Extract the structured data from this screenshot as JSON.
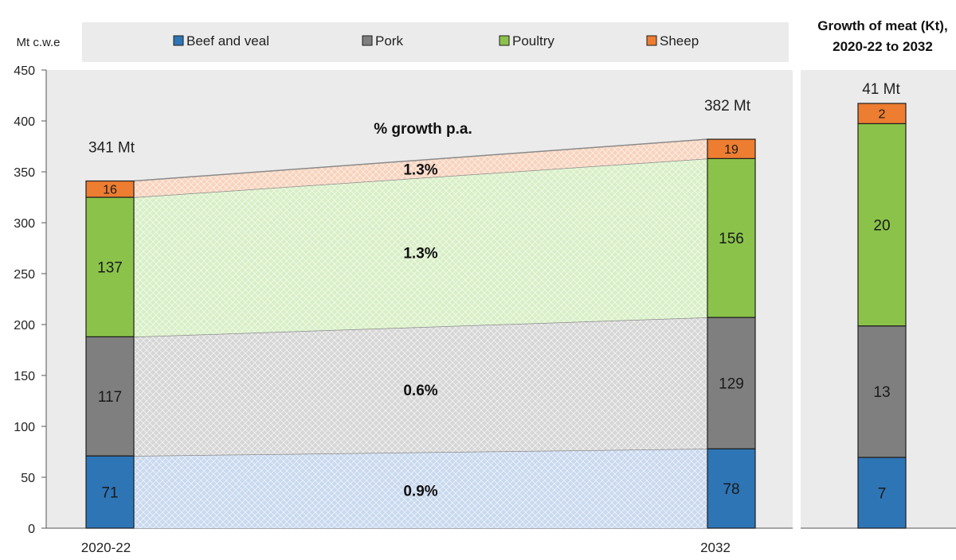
{
  "colors": {
    "beef": "#2e75b6",
    "pork": "#7f7f7f",
    "poultry": "#8bc34a",
    "sheep": "#ed7d31",
    "beef_band": "#c9d9ef",
    "pork_band": "#d6d6d6",
    "poultry_band": "#d8efc6",
    "sheep_band": "#f8d3bd",
    "panel_bg": "#ebebeb"
  },
  "chart_data": [
    {
      "type": "bar",
      "stacked": true,
      "ylabel": "Mt c.w.e",
      "ylim": [
        0,
        450
      ],
      "yticks": [
        0,
        50,
        100,
        150,
        200,
        250,
        300,
        350,
        400,
        450
      ],
      "categories": [
        "2020-22",
        "2032"
      ],
      "totals": [
        "341  Mt",
        "382  Mt"
      ],
      "annotation_title": "% growth p.a.",
      "legend": [
        "Beef and veal",
        "Pork",
        "Poultry",
        "Sheep"
      ],
      "legend_position": "top",
      "series": [
        {
          "name": "Beef and veal",
          "color_key": "beef",
          "values": [
            71,
            78
          ],
          "growth": "0.9%"
        },
        {
          "name": "Pork",
          "color_key": "pork",
          "values": [
            117,
            129
          ],
          "growth": "0.6%"
        },
        {
          "name": "Poultry",
          "color_key": "poultry",
          "values": [
            137,
            156
          ],
          "growth": "1.3%"
        },
        {
          "name": "Sheep",
          "color_key": "sheep",
          "values": [
            16,
            19
          ],
          "growth": "1.3%"
        }
      ]
    },
    {
      "type": "bar",
      "stacked": true,
      "title": "Growth of meat (Kt), 2020-22 to 2032",
      "ylim": [
        0,
        41
      ],
      "total": "41   Mt",
      "series": [
        {
          "name": "Beef and veal",
          "color_key": "beef",
          "value": 7
        },
        {
          "name": "Pork",
          "color_key": "pork",
          "value": 13
        },
        {
          "name": "Poultry",
          "color_key": "poultry",
          "value": 20
        },
        {
          "name": "Sheep",
          "color_key": "sheep",
          "value": 2
        }
      ]
    }
  ]
}
